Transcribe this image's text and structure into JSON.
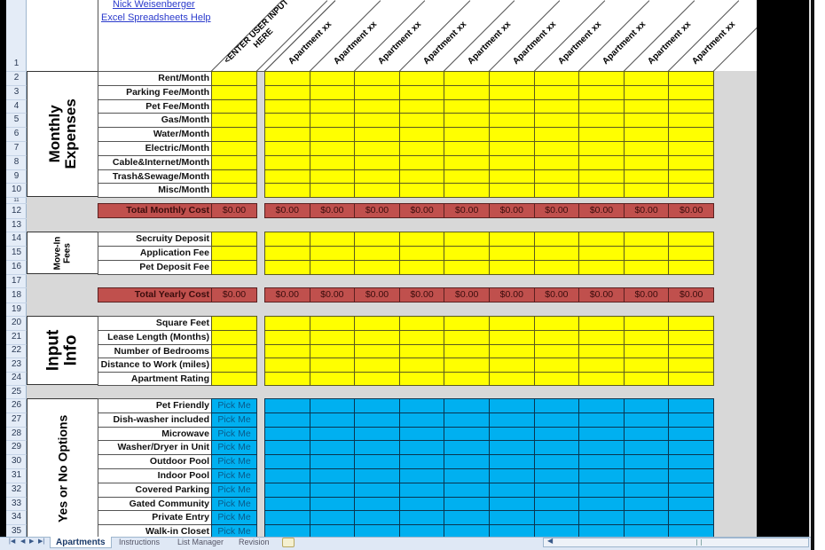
{
  "header": {
    "author_link": "Nick Weisenberger",
    "help_link": "Excel Spreadsheets Help",
    "input_column_header": "<ENTER USER INPUT HERE",
    "apartment_headers": [
      "Apartment xx",
      "Apartment xx",
      "Apartment xx",
      "Apartment xx",
      "Apartment xx",
      "Apartment xx",
      "Apartment xx",
      "Apartment xx",
      "Apartment xx",
      "Apartment xx"
    ]
  },
  "row_numbers": [
    "1",
    "2",
    "3",
    "4",
    "5",
    "6",
    "7",
    "8",
    "9",
    "10",
    "11",
    "12",
    "13",
    "14",
    "15",
    "16",
    "17",
    "18",
    "19",
    "20",
    "21",
    "22",
    "23",
    "24",
    "25",
    "26",
    "27",
    "28",
    "29",
    "30",
    "31",
    "32",
    "33",
    "34",
    "35"
  ],
  "sections": {
    "monthly_expenses": {
      "title_line1": "Monthly",
      "title_line2": "Expenses",
      "labels": [
        "Rent/Month",
        "Parking Fee/Month",
        "Pet Fee/Month",
        "Gas/Month",
        "Water/Month",
        "Electric/Month",
        "Cable&Internet/Month",
        "Trash&Sewage/Month",
        "Misc/Month"
      ]
    },
    "total_monthly": {
      "label": "Total Monthly Cost",
      "input_value": "$0.00",
      "values": [
        "$0.00",
        "$0.00",
        "$0.00",
        "$0.00",
        "$0.00",
        "$0.00",
        "$0.00",
        "$0.00",
        "$0.00",
        "$0.00"
      ]
    },
    "move_in_fees": {
      "title_line1": "Move-In",
      "title_line2": "Fees",
      "labels": [
        "Secruity Deposit",
        "Application Fee",
        "Pet Deposit Fee"
      ]
    },
    "total_yearly": {
      "label": "Total Yearly Cost",
      "input_value": "$0.00",
      "values": [
        "$0.00",
        "$0.00",
        "$0.00",
        "$0.00",
        "$0.00",
        "$0.00",
        "$0.00",
        "$0.00",
        "$0.00",
        "$0.00"
      ]
    },
    "input_info": {
      "title_line1": "Input",
      "title_line2": "Info",
      "labels": [
        "Square Feet",
        "Lease Length (Months)",
        "Number of Bedrooms",
        "Distance to Work (miles)",
        "Apartment Rating"
      ]
    },
    "yes_no": {
      "title": "Yes or No Options",
      "labels": [
        "Pet Friendly",
        "Dish-washer included",
        "Microwave",
        "Washer/Dryer in Unit",
        "Outdoor Pool",
        "Indoor Pool",
        "Covered Parking",
        "Gated Community",
        "Private Entry",
        "Walk-in Closet"
      ],
      "input_value": "Pick Me"
    }
  },
  "sheet_tabs": [
    {
      "label": "Apartments",
      "active": true
    },
    {
      "label": "Instructions",
      "active": false
    },
    {
      "label": "List Manager",
      "active": false
    },
    {
      "label": "Revision",
      "active": false
    }
  ],
  "colors": {
    "input_yellow": "#ffff00",
    "yesno_blue": "#00b0f0",
    "total_red": "#c0504d",
    "background_gray": "#d8d8d8"
  }
}
